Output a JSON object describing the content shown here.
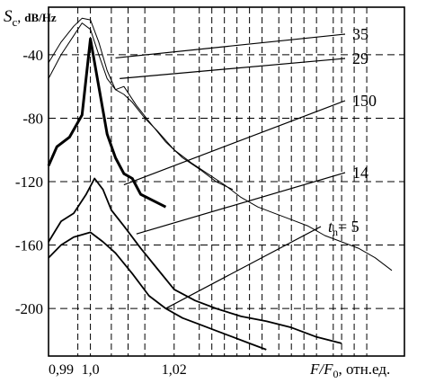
{
  "chart_data": {
    "type": "line",
    "ylabel": {
      "symbol": "S",
      "subscript": "c",
      "sep": ", ",
      "unit": "dB/Hz"
    },
    "xlabel": {
      "symbol": "F/F",
      "subscript": "0",
      "suffix": ", отн.ед."
    },
    "ylim": [
      -230,
      -10
    ],
    "xlim": [
      0.99,
      1.075
    ],
    "y_ticks": [
      {
        "value": -40,
        "label": "-40"
      },
      {
        "value": -80,
        "label": "-80"
      },
      {
        "value": -120,
        "label": "-120"
      },
      {
        "value": -160,
        "label": "-160"
      },
      {
        "value": -200,
        "label": "-200"
      }
    ],
    "x_ticks": [
      {
        "value": 0.99,
        "label": "0,99"
      },
      {
        "value": 1.0,
        "label": "1,0"
      },
      {
        "value": 1.02,
        "label": "1,02"
      }
    ],
    "vertical_gridlines": [
      0.997,
      1.0,
      1.005,
      1.009,
      1.013,
      1.02,
      1.026,
      1.029,
      1.032,
      1.035,
      1.038,
      1.041,
      1.045,
      1.048,
      1.051,
      1.054,
      1.058,
      1.06,
      1.063,
      1.066
    ],
    "grid": true,
    "series": [
      {
        "name": "35",
        "style": "thin",
        "x": [
          0.99,
          0.993,
          0.996,
          0.998,
          1.0,
          1.002,
          1.004,
          1.006,
          1.008,
          1.01,
          1.013,
          1.016,
          1.02,
          1.024,
          1.028,
          1.032,
          1.036,
          1.04,
          1.044,
          1.048,
          1.052,
          1.056,
          1.06,
          1.064,
          1.068,
          1.072
        ],
        "y": [
          -45,
          -32,
          -22,
          -17,
          -18,
          -32,
          -50,
          -62,
          -65,
          -70,
          -80,
          -88,
          -100,
          -108,
          -115,
          -122,
          -130,
          -136,
          -140,
          -144,
          -148,
          -154,
          -158,
          -162,
          -168,
          -176
        ]
      },
      {
        "name": "29",
        "style": "thin",
        "x": [
          0.99,
          0.993,
          0.996,
          0.998,
          1.0,
          1.002,
          1.004,
          1.006,
          1.008,
          1.011,
          1.014,
          1.018,
          1.022,
          1.026,
          1.03,
          1.034
        ],
        "y": [
          -55,
          -40,
          -28,
          -20,
          -24,
          -40,
          -55,
          -62,
          -60,
          -72,
          -82,
          -95,
          -105,
          -112,
          -120,
          -125
        ]
      },
      {
        "name": "150",
        "style": "thick",
        "x": [
          0.99,
          0.992,
          0.995,
          0.998,
          1.0,
          1.002,
          1.004,
          1.006,
          1.008,
          1.01,
          1.012,
          1.015,
          1.018
        ],
        "y": [
          -110,
          -98,
          -92,
          -78,
          -30,
          -60,
          -90,
          -105,
          -115,
          -118,
          -128,
          -132,
          -136
        ]
      },
      {
        "name": "14",
        "style": "medium",
        "x": [
          0.99,
          0.993,
          0.996,
          0.999,
          1.001,
          1.003,
          1.005,
          1.008,
          1.012,
          1.016,
          1.02,
          1.025,
          1.03,
          1.036,
          1.042,
          1.048,
          1.054,
          1.06
        ],
        "y": [
          -158,
          -145,
          -140,
          -128,
          -118,
          -125,
          -138,
          -148,
          -162,
          -175,
          -188,
          -195,
          -200,
          -205,
          -208,
          -212,
          -218,
          -222
        ]
      },
      {
        "name": "t",
        "style": "medium",
        "x": [
          0.99,
          0.993,
          0.996,
          1.0,
          1.003,
          1.006,
          1.01,
          1.014,
          1.018,
          1.022,
          1.026,
          1.03,
          1.034,
          1.038,
          1.042
        ],
        "y": [
          -168,
          -160,
          -155,
          -152,
          -158,
          -165,
          -178,
          -192,
          -200,
          -206,
          -210,
          -214,
          -218,
          -222,
          -226
        ]
      }
    ],
    "annotations": [
      {
        "label": "35",
        "series": "35",
        "target": [
          1.006,
          -42
        ]
      },
      {
        "label": "29",
        "series": "29",
        "target": [
          1.007,
          -55
        ]
      },
      {
        "label": "150",
        "series": "150",
        "target": [
          1.008,
          -122
        ]
      },
      {
        "label": "14",
        "series": "14",
        "target": [
          1.011,
          -153
        ]
      },
      {
        "label": "t",
        "sub": "n",
        "suffix": "= 5",
        "series": "t",
        "target": [
          1.018,
          -200
        ]
      }
    ]
  }
}
